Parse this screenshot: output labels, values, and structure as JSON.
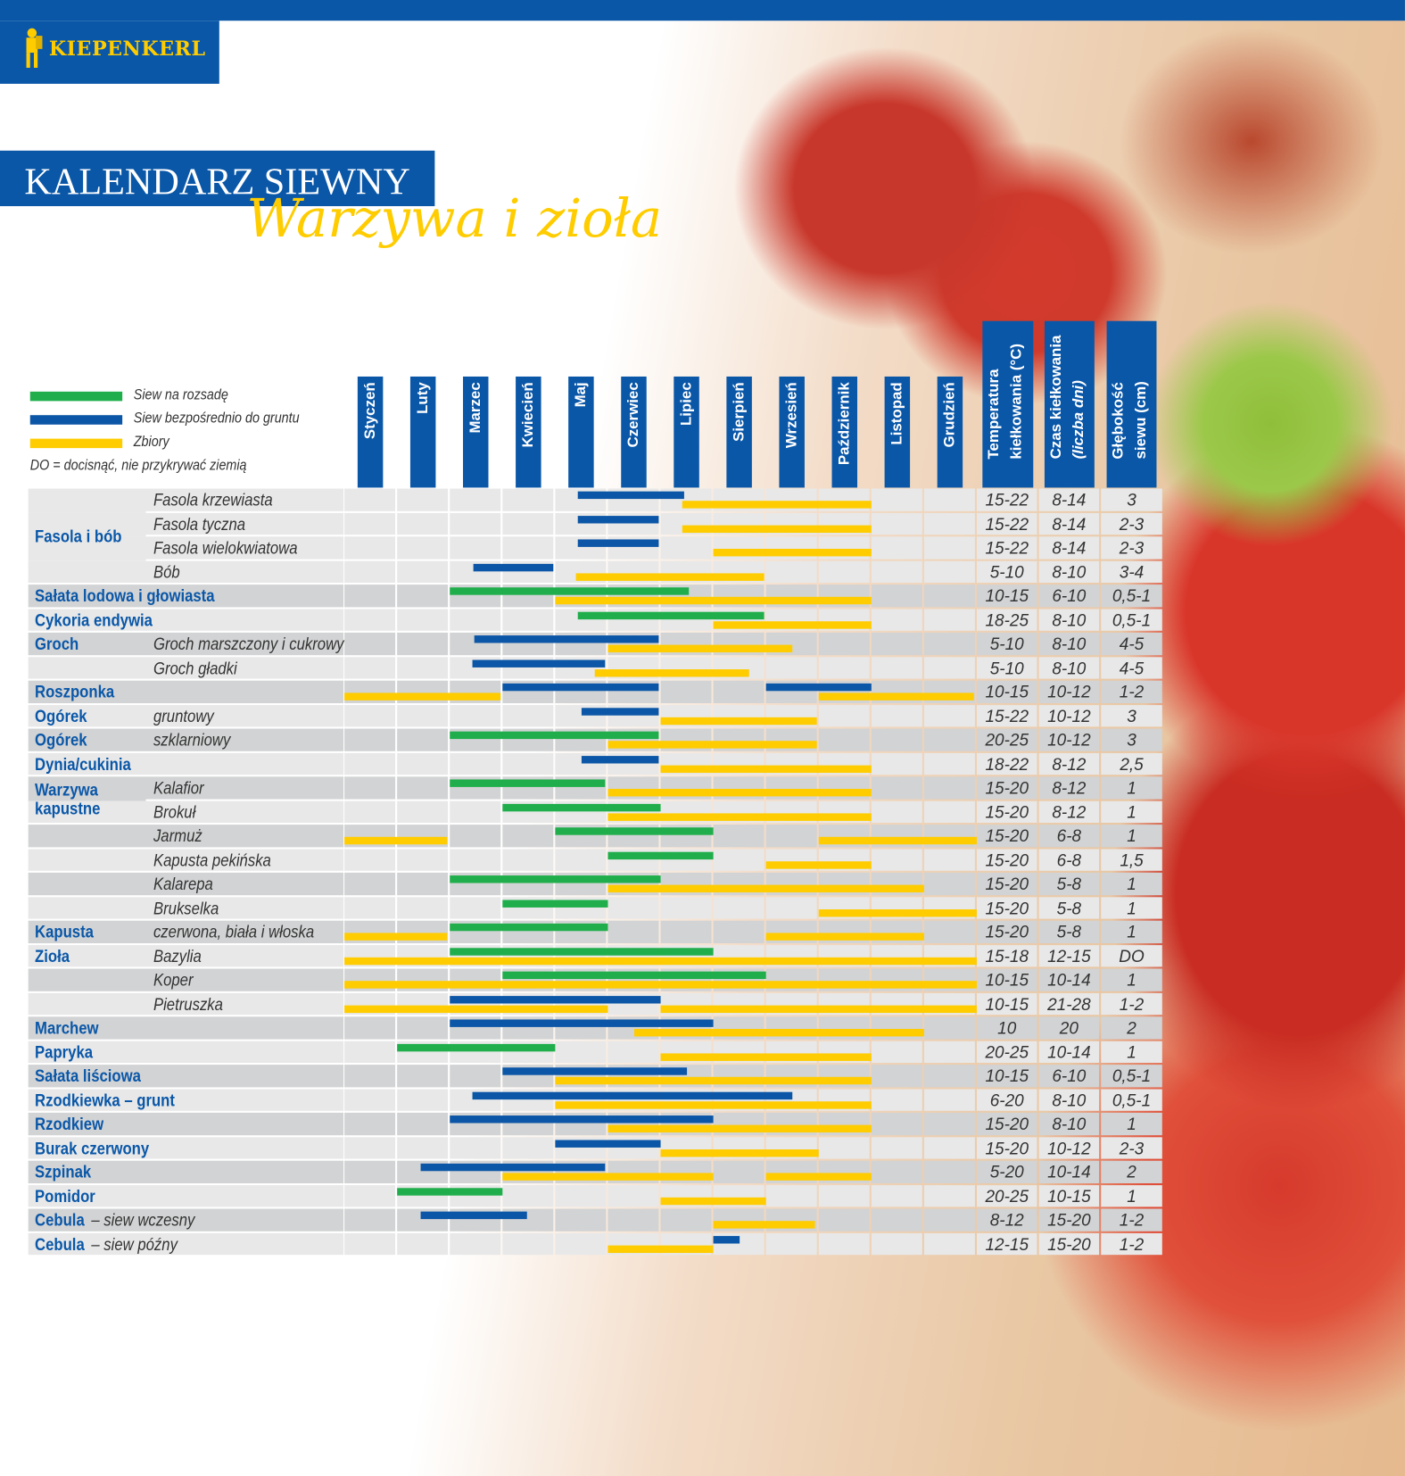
{
  "brand": {
    "name": "KIEPENKERL",
    "logo_color": "#ffcc00"
  },
  "title": "KALENDARZ SIEWNY",
  "subtitle": "Warzywa i zioła",
  "colors": {
    "brand_blue": "#0a57a8",
    "green": "#1fae4b",
    "blue": "#0b56a6",
    "yellow": "#ffcc00",
    "row_light": "#e8e8e8",
    "row_dark": "#d2d3d4"
  },
  "legend": [
    {
      "key": "green",
      "label": "Siew na rozsadę"
    },
    {
      "key": "blue",
      "label": "Siew bezpośrednio do gruntu"
    },
    {
      "key": "yellow",
      "label": "Zbiory"
    }
  ],
  "legend_note": "DO = docisnąć, nie przykrywać ziemią",
  "extra_headers": [
    {
      "line1": "Temperatura",
      "line2": "kiełkowania (°C)"
    },
    {
      "line1": "Czas kiełkowania",
      "line2": "(liczba dni)"
    },
    {
      "line1": "Głębokość",
      "line2": "siewu (cm)"
    }
  ],
  "chart_data": {
    "type": "bar",
    "orientation": "horizontal-timeline",
    "categories": [
      "Styczeń",
      "Luty",
      "Marzec",
      "Kwiecień",
      "Maj",
      "Czerwiec",
      "Lipiec",
      "Sierpień",
      "Wrzesień",
      "Październik",
      "Listopad",
      "Grudzień"
    ],
    "xlim": [
      0,
      12
    ],
    "series": [
      {
        "key": "green",
        "name": "Siew na rozsadę"
      },
      {
        "key": "blue",
        "name": "Siew bezpośrednio do gruntu"
      },
      {
        "key": "yellow",
        "name": "Zbiory"
      }
    ],
    "groups": [
      {
        "label": "Fasola i bób",
        "row": 0,
        "span": 4
      },
      {
        "label": "Warzywa",
        "label2": "kapustne",
        "row": 12,
        "span": 2
      }
    ],
    "rows": [
      {
        "group": "",
        "sub": "Fasola krzewiasta",
        "temp": "15-22",
        "days": "8-14",
        "depth": "3",
        "bars": [
          [
            "blue",
            4.43,
            6.45
          ],
          [
            "yellow",
            6.41,
            10
          ]
        ]
      },
      {
        "group": "",
        "sub": "Fasola tyczna",
        "temp": "15-22",
        "days": "8-14",
        "depth": "2-3",
        "bars": [
          [
            "blue",
            4.43,
            5.96
          ],
          [
            "yellow",
            6.41,
            10
          ]
        ]
      },
      {
        "group": "",
        "sub": "Fasola wielokwiatowa",
        "temp": "15-22",
        "days": "8-14",
        "depth": "2-3",
        "bars": [
          [
            "blue",
            4.43,
            5.96
          ],
          [
            "yellow",
            7,
            10
          ]
        ]
      },
      {
        "group": "",
        "sub": "Bób",
        "temp": "5-10",
        "days": "8-10",
        "depth": "3-4",
        "bars": [
          [
            "blue",
            2.45,
            3.96
          ],
          [
            "yellow",
            4.39,
            7.96
          ]
        ]
      },
      {
        "group": "Sałata lodowa i głowiasta",
        "sub": "",
        "temp": "10-15",
        "days": "6-10",
        "depth": "0,5-1",
        "bars": [
          [
            "green",
            2,
            6.54
          ],
          [
            "yellow",
            4,
            10
          ]
        ]
      },
      {
        "group": "Cykoria endywia",
        "sub": "",
        "temp": "18-25",
        "days": "8-10",
        "depth": "0,5-1",
        "bars": [
          [
            "green",
            4.43,
            7.96
          ],
          [
            "yellow",
            7,
            10
          ]
        ]
      },
      {
        "group": "Groch",
        "sub": "Groch marszczony i cukrowy",
        "temp": "5-10",
        "days": "8-10",
        "depth": "4-5",
        "bars": [
          [
            "blue",
            2.46,
            5.96
          ],
          [
            "yellow",
            5,
            8.5
          ]
        ]
      },
      {
        "group": "",
        "sub": "Groch gładki",
        "temp": "5-10",
        "days": "8-10",
        "depth": "4-5",
        "bars": [
          [
            "blue",
            2.43,
            4.95
          ],
          [
            "yellow",
            4.75,
            7.68
          ]
        ]
      },
      {
        "group": "Roszponka",
        "sub": "",
        "temp": "10-15",
        "days": "10-12",
        "depth": "1-2",
        "bars": [
          [
            "yellow",
            0,
            2.96
          ],
          [
            "blue",
            3,
            5.96
          ],
          [
            "blue",
            8,
            10
          ],
          [
            "yellow",
            9,
            11.95
          ]
        ]
      },
      {
        "group": "Ogórek",
        "sub": "gruntowy",
        "temp": "15-22",
        "days": "10-12",
        "depth": "3",
        "bars": [
          [
            "blue",
            4.5,
            5.96
          ],
          [
            "yellow",
            6,
            8.96
          ]
        ]
      },
      {
        "group": "Ogórek",
        "sub": "szklarniowy",
        "temp": "20-25",
        "days": "10-12",
        "depth": "3",
        "bars": [
          [
            "green",
            2,
            5.96
          ],
          [
            "yellow",
            5,
            8.96
          ]
        ]
      },
      {
        "group": "Dynia/cukinia",
        "sub": "",
        "temp": "18-22",
        "days": "8-12",
        "depth": "2,5",
        "bars": [
          [
            "blue",
            4.5,
            5.96
          ],
          [
            "yellow",
            6,
            10
          ]
        ]
      },
      {
        "group": "",
        "sub": "Kalafior",
        "temp": "15-20",
        "days": "8-12",
        "depth": "1",
        "bars": [
          [
            "green",
            2,
            4.95
          ],
          [
            "yellow",
            5,
            10
          ]
        ]
      },
      {
        "group": "",
        "sub": "Brokuł",
        "temp": "15-20",
        "days": "8-12",
        "depth": "1",
        "bars": [
          [
            "green",
            3,
            6
          ],
          [
            "yellow",
            5,
            10
          ]
        ]
      },
      {
        "group": "",
        "sub": "Jarmuż",
        "temp": "15-20",
        "days": "6-8",
        "depth": "1",
        "bars": [
          [
            "yellow",
            0,
            1.95
          ],
          [
            "green",
            4,
            7
          ],
          [
            "yellow",
            9,
            12
          ]
        ]
      },
      {
        "group": "",
        "sub": "Kapusta pekińska",
        "temp": "15-20",
        "days": "6-8",
        "depth": "1,5",
        "bars": [
          [
            "green",
            5,
            7
          ],
          [
            "yellow",
            8,
            10
          ]
        ]
      },
      {
        "group": "",
        "sub": "Kalarepa",
        "temp": "15-20",
        "days": "5-8",
        "depth": "1",
        "bars": [
          [
            "green",
            2,
            6
          ],
          [
            "yellow",
            5,
            11
          ]
        ]
      },
      {
        "group": "",
        "sub": "Brukselka",
        "temp": "15-20",
        "days": "5-8",
        "depth": "1",
        "bars": [
          [
            "green",
            3,
            5
          ],
          [
            "yellow",
            9,
            12
          ]
        ]
      },
      {
        "group": "Kapusta",
        "sub": "czerwona, biała i włoska",
        "temp": "15-20",
        "days": "5-8",
        "depth": "1",
        "bars": [
          [
            "yellow",
            0,
            1.95
          ],
          [
            "green",
            2,
            5
          ],
          [
            "yellow",
            8,
            11
          ]
        ]
      },
      {
        "group": "Zioła",
        "sub": "Bazylia",
        "temp": "15-18",
        "days": "12-15",
        "depth": "DO",
        "bars": [
          [
            "green",
            2,
            7
          ],
          [
            "yellow",
            0,
            12
          ]
        ]
      },
      {
        "group": "",
        "sub": "Koper",
        "temp": "10-15",
        "days": "10-14",
        "depth": "1",
        "bars": [
          [
            "green",
            3,
            8
          ],
          [
            "yellow",
            0,
            12
          ]
        ]
      },
      {
        "group": "",
        "sub": "Pietruszka",
        "temp": "10-15",
        "days": "21-28",
        "depth": "1-2",
        "bars": [
          [
            "blue",
            2,
            6
          ],
          [
            "yellow",
            0,
            5
          ],
          [
            "yellow",
            6,
            12
          ]
        ]
      },
      {
        "group": "Marchew",
        "sub": "",
        "temp": "10",
        "days": "20",
        "depth": "2",
        "bars": [
          [
            "blue",
            2,
            7
          ],
          [
            "yellow",
            5.5,
            11
          ]
        ]
      },
      {
        "group": "Papryka",
        "sub": "",
        "temp": "20-25",
        "days": "10-14",
        "depth": "1",
        "bars": [
          [
            "green",
            1,
            4
          ],
          [
            "yellow",
            6,
            10
          ]
        ]
      },
      {
        "group": "Sałata liściowa",
        "sub": "",
        "temp": "10-15",
        "days": "6-10",
        "depth": "0,5-1",
        "bars": [
          [
            "blue",
            3,
            6.5
          ],
          [
            "yellow",
            4,
            10
          ]
        ]
      },
      {
        "group": "Rzodkiewka – grunt",
        "sub": "",
        "temp": "6-20",
        "days": "8-10",
        "depth": "0,5-1",
        "bars": [
          [
            "blue",
            2.43,
            8.5
          ],
          [
            "yellow",
            4,
            10
          ]
        ]
      },
      {
        "group": "Rzodkiew",
        "sub": "",
        "temp": "15-20",
        "days": "8-10",
        "depth": "1",
        "bars": [
          [
            "blue",
            2,
            7
          ],
          [
            "yellow",
            5,
            10
          ]
        ]
      },
      {
        "group": "Burak czerwony",
        "sub": "",
        "temp": "15-20",
        "days": "10-12",
        "depth": "2-3",
        "bars": [
          [
            "blue",
            4,
            6
          ],
          [
            "yellow",
            6,
            9
          ]
        ]
      },
      {
        "group": "Szpinak",
        "sub": "",
        "temp": "5-20",
        "days": "10-14",
        "depth": "2",
        "bars": [
          [
            "blue",
            1.45,
            4.95
          ],
          [
            "yellow",
            3,
            7
          ],
          [
            "yellow",
            8,
            10
          ]
        ]
      },
      {
        "group": "Pomidor",
        "sub": "",
        "temp": "20-25",
        "days": "10-15",
        "depth": "1",
        "bars": [
          [
            "green",
            1,
            3
          ],
          [
            "yellow",
            6,
            8
          ]
        ]
      },
      {
        "group": "Cebula",
        "sub": "– siew wczesny",
        "inline": true,
        "temp": "8-12",
        "days": "15-20",
        "depth": "1-2",
        "bars": [
          [
            "blue",
            1.45,
            3.46
          ],
          [
            "yellow",
            7,
            8.93
          ]
        ]
      },
      {
        "group": "Cebula",
        "sub": "– siew późny",
        "inline": true,
        "temp": "12-15",
        "days": "15-20",
        "depth": "1-2",
        "bars": [
          [
            "yellow",
            5,
            7
          ],
          [
            "blue",
            7,
            7.5
          ]
        ]
      }
    ]
  }
}
